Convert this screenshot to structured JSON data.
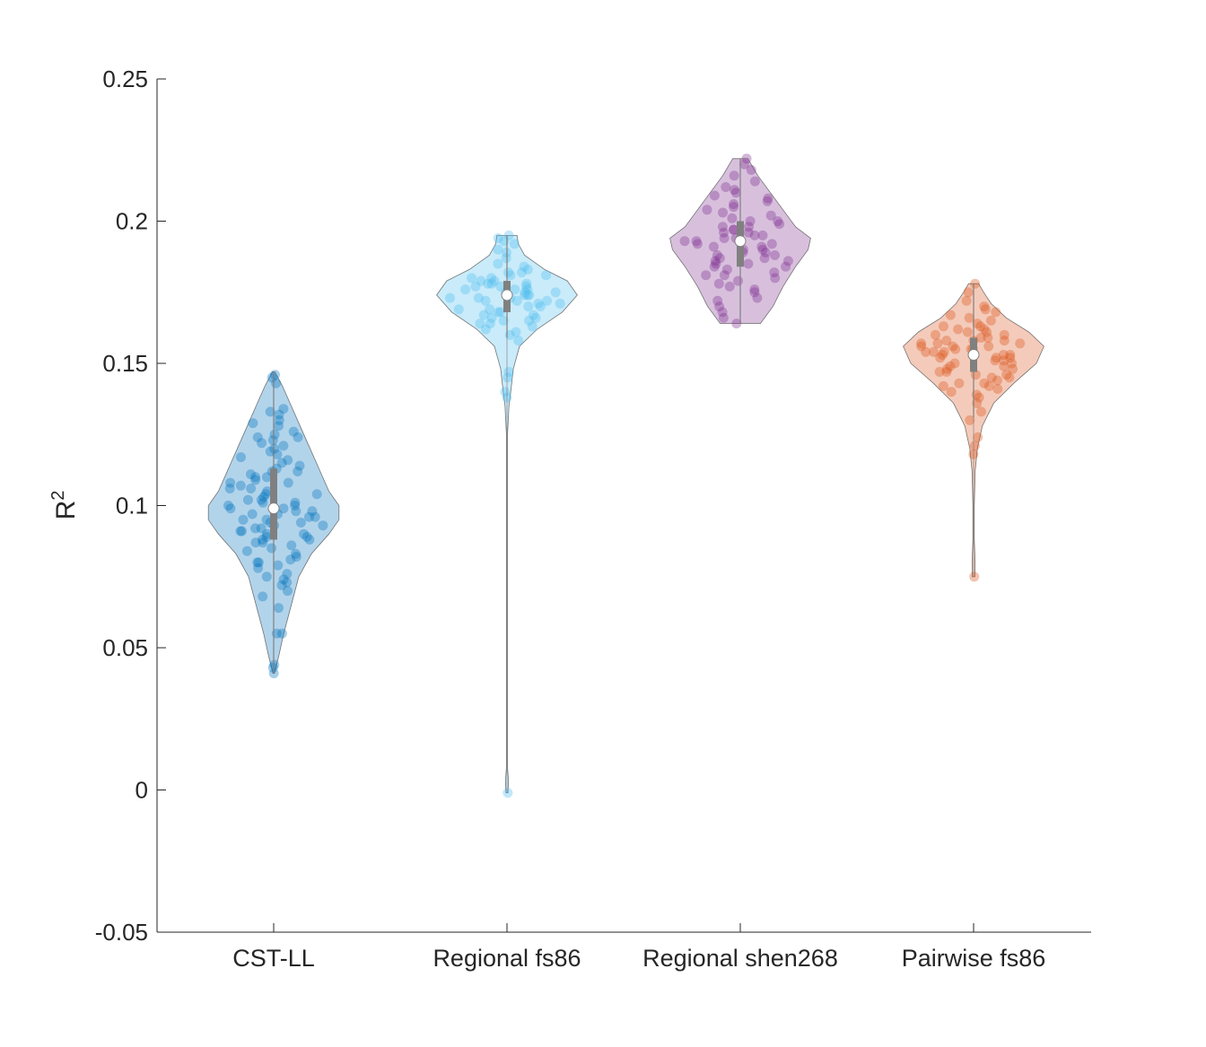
{
  "chart_data": {
    "type": "violin",
    "title": "",
    "xlabel": "",
    "ylabel": "R",
    "ylabel_superscript": "2",
    "ylim": [
      -0.05,
      0.25
    ],
    "yticks": [
      -0.05,
      0,
      0.05,
      0.1,
      0.15,
      0.2,
      0.25
    ],
    "ytick_labels": [
      "-0.05",
      "0",
      "0.05",
      "0.1",
      "0.15",
      "0.2",
      "0.25"
    ],
    "grid": false,
    "legend": "none",
    "categories": [
      "CST-LL",
      "Regional fs86",
      "Regional shen268",
      "Pairwise fs86"
    ],
    "series": [
      {
        "category": "CST-LL",
        "color": "#0072BD",
        "median": 0.099,
        "q1": 0.088,
        "q3": 0.113,
        "whisker_low": 0.041,
        "whisker_high": 0.147,
        "min": 0.041,
        "max": 0.147,
        "density": [
          [
            0.041,
            0.003
          ],
          [
            0.047,
            0.02
          ],
          [
            0.055,
            0.04
          ],
          [
            0.065,
            0.07
          ],
          [
            0.075,
            0.1
          ],
          [
            0.083,
            0.15
          ],
          [
            0.09,
            0.22
          ],
          [
            0.095,
            0.26
          ],
          [
            0.1,
            0.26
          ],
          [
            0.105,
            0.22
          ],
          [
            0.115,
            0.17
          ],
          [
            0.125,
            0.12
          ],
          [
            0.135,
            0.07
          ],
          [
            0.142,
            0.035
          ],
          [
            0.147,
            0.005
          ]
        ],
        "points": [
          0.041,
          0.043,
          0.044,
          0.055,
          0.055,
          0.064,
          0.068,
          0.07,
          0.072,
          0.073,
          0.074,
          0.075,
          0.076,
          0.078,
          0.079,
          0.08,
          0.08,
          0.081,
          0.082,
          0.083,
          0.084,
          0.085,
          0.086,
          0.087,
          0.087,
          0.088,
          0.088,
          0.089,
          0.089,
          0.09,
          0.09,
          0.091,
          0.091,
          0.092,
          0.092,
          0.093,
          0.093,
          0.094,
          0.094,
          0.095,
          0.095,
          0.096,
          0.096,
          0.097,
          0.097,
          0.098,
          0.098,
          0.099,
          0.099,
          0.1,
          0.1,
          0.101,
          0.101,
          0.102,
          0.102,
          0.103,
          0.104,
          0.104,
          0.105,
          0.106,
          0.106,
          0.107,
          0.108,
          0.108,
          0.109,
          0.11,
          0.11,
          0.111,
          0.112,
          0.112,
          0.113,
          0.114,
          0.115,
          0.116,
          0.117,
          0.118,
          0.119,
          0.12,
          0.121,
          0.122,
          0.123,
          0.124,
          0.124,
          0.125,
          0.126,
          0.128,
          0.129,
          0.13,
          0.132,
          0.133,
          0.134,
          0.143,
          0.145,
          0.146
        ]
      },
      {
        "category": "Regional fs86",
        "color": "#4DBEEE",
        "median": 0.174,
        "q1": 0.168,
        "q3": 0.179,
        "whisker_low": 0.159,
        "whisker_high": 0.195,
        "min": -0.001,
        "max": 0.195,
        "density": [
          [
            -0.001,
            0.004
          ],
          [
            0.003,
            0.006
          ],
          [
            0.008,
            0.002
          ],
          [
            0.02,
            0.002
          ],
          [
            0.08,
            0.002
          ],
          [
            0.125,
            0.002
          ],
          [
            0.135,
            0.008
          ],
          [
            0.14,
            0.015
          ],
          [
            0.148,
            0.025
          ],
          [
            0.156,
            0.05
          ],
          [
            0.162,
            0.12
          ],
          [
            0.168,
            0.22
          ],
          [
            0.174,
            0.28
          ],
          [
            0.179,
            0.24
          ],
          [
            0.183,
            0.15
          ],
          [
            0.188,
            0.07
          ],
          [
            0.192,
            0.045
          ],
          [
            0.195,
            0.04
          ]
        ],
        "points": [
          -0.001,
          0.138,
          0.14,
          0.145,
          0.147,
          0.158,
          0.16,
          0.161,
          0.162,
          0.163,
          0.164,
          0.164,
          0.165,
          0.165,
          0.166,
          0.166,
          0.167,
          0.167,
          0.168,
          0.168,
          0.169,
          0.169,
          0.17,
          0.17,
          0.171,
          0.171,
          0.172,
          0.172,
          0.172,
          0.173,
          0.173,
          0.173,
          0.174,
          0.174,
          0.174,
          0.175,
          0.175,
          0.175,
          0.176,
          0.176,
          0.176,
          0.177,
          0.177,
          0.177,
          0.178,
          0.178,
          0.178,
          0.179,
          0.179,
          0.18,
          0.18,
          0.181,
          0.181,
          0.182,
          0.182,
          0.183,
          0.184,
          0.185,
          0.187,
          0.189,
          0.19,
          0.192,
          0.193,
          0.194,
          0.195
        ]
      },
      {
        "category": "Regional shen268",
        "color": "#7E2F8E",
        "median": 0.193,
        "q1": 0.184,
        "q3": 0.2,
        "whisker_low": 0.164,
        "whisker_high": 0.222,
        "min": 0.164,
        "max": 0.222,
        "density": [
          [
            0.164,
            0.08
          ],
          [
            0.17,
            0.13
          ],
          [
            0.177,
            0.17
          ],
          [
            0.184,
            0.22
          ],
          [
            0.19,
            0.27
          ],
          [
            0.194,
            0.28
          ],
          [
            0.198,
            0.22
          ],
          [
            0.204,
            0.17
          ],
          [
            0.21,
            0.12
          ],
          [
            0.216,
            0.07
          ],
          [
            0.222,
            0.03
          ]
        ],
        "points": [
          0.164,
          0.166,
          0.168,
          0.17,
          0.172,
          0.173,
          0.175,
          0.176,
          0.177,
          0.178,
          0.179,
          0.18,
          0.181,
          0.181,
          0.182,
          0.183,
          0.184,
          0.184,
          0.185,
          0.185,
          0.186,
          0.186,
          0.187,
          0.187,
          0.188,
          0.188,
          0.189,
          0.189,
          0.19,
          0.19,
          0.191,
          0.191,
          0.192,
          0.192,
          0.193,
          0.193,
          0.193,
          0.194,
          0.194,
          0.195,
          0.195,
          0.196,
          0.196,
          0.197,
          0.197,
          0.198,
          0.198,
          0.199,
          0.2,
          0.2,
          0.201,
          0.202,
          0.203,
          0.204,
          0.205,
          0.206,
          0.207,
          0.208,
          0.209,
          0.21,
          0.211,
          0.212,
          0.214,
          0.216,
          0.218,
          0.22,
          0.222
        ]
      },
      {
        "category": "Pairwise fs86",
        "color": "#D95319",
        "median": 0.153,
        "q1": 0.147,
        "q3": 0.159,
        "whisker_low": 0.131,
        "whisker_high": 0.178,
        "min": 0.075,
        "max": 0.178,
        "density": [
          [
            0.075,
            0.005
          ],
          [
            0.08,
            0.006
          ],
          [
            0.088,
            0.003
          ],
          [
            0.1,
            0.003
          ],
          [
            0.112,
            0.006
          ],
          [
            0.12,
            0.015
          ],
          [
            0.128,
            0.035
          ],
          [
            0.136,
            0.08
          ],
          [
            0.143,
            0.16
          ],
          [
            0.15,
            0.25
          ],
          [
            0.156,
            0.28
          ],
          [
            0.161,
            0.22
          ],
          [
            0.166,
            0.13
          ],
          [
            0.171,
            0.07
          ],
          [
            0.175,
            0.04
          ],
          [
            0.178,
            0.02
          ]
        ],
        "points": [
          0.075,
          0.118,
          0.121,
          0.124,
          0.13,
          0.133,
          0.136,
          0.138,
          0.139,
          0.14,
          0.141,
          0.142,
          0.142,
          0.143,
          0.143,
          0.144,
          0.145,
          0.145,
          0.146,
          0.146,
          0.147,
          0.147,
          0.148,
          0.148,
          0.149,
          0.149,
          0.15,
          0.15,
          0.151,
          0.151,
          0.152,
          0.152,
          0.152,
          0.153,
          0.153,
          0.153,
          0.154,
          0.154,
          0.154,
          0.155,
          0.155,
          0.155,
          0.156,
          0.156,
          0.156,
          0.157,
          0.157,
          0.157,
          0.158,
          0.158,
          0.158,
          0.159,
          0.159,
          0.16,
          0.16,
          0.161,
          0.161,
          0.162,
          0.162,
          0.163,
          0.163,
          0.164,
          0.165,
          0.166,
          0.167,
          0.168,
          0.169,
          0.17,
          0.172,
          0.175,
          0.178
        ]
      }
    ]
  }
}
